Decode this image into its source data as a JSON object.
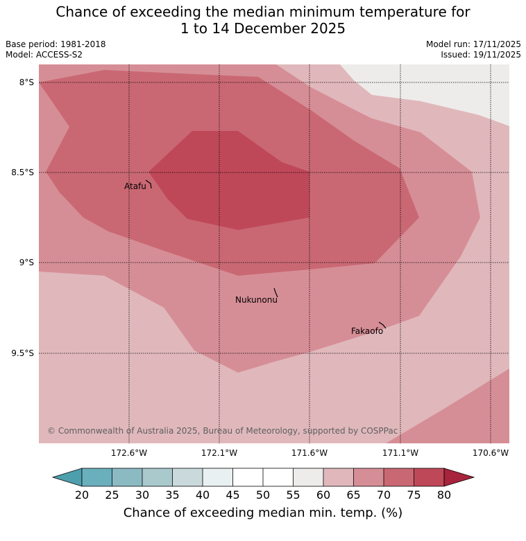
{
  "title": {
    "line1": "Chance of exceeding the median minimum temperature for",
    "line2": "1 to 14 December 2025"
  },
  "meta": {
    "base_period": "Base period: 1981-2018",
    "model": "Model: ACCESS-S2",
    "model_run": "Model run: 17/11/2025",
    "issued": "Issued: 19/11/2025"
  },
  "map": {
    "lat_labels": [
      "8°S",
      "8.5°S",
      "9°S",
      "9.5°S"
    ],
    "lon_labels": [
      "172.6°W",
      "172.1°W",
      "171.6°W",
      "171.1°W",
      "170.6°W"
    ],
    "places": [
      "Atafu",
      "Nukunonu",
      "Fakaofo"
    ],
    "copyright": "© Commonwealth of Australia 2025, Bureau of Meteorology, supported by COSPPac"
  },
  "colorbar": {
    "ticks": [
      "20",
      "25",
      "30",
      "35",
      "40",
      "45",
      "50",
      "55",
      "60",
      "65",
      "70",
      "75",
      "80"
    ],
    "colors": {
      "below_20": "#4e9fad",
      "20_25": "#6aafbc",
      "25_30": "#8bbac3",
      "30_35": "#a9c9cd",
      "35_40": "#c9d9dc",
      "40_45": "#e9f0f2",
      "45_50": "#ffffff",
      "50_55": "#ffffff",
      "55_60": "#eeeceb",
      "60_65": "#e0b8bc",
      "65_70": "#d68e96",
      "70_75": "#c96873",
      "75_80": "#bf4858",
      "above_80": "#a8233c"
    },
    "label": "Chance of exceeding median min. temp. (%)"
  }
}
